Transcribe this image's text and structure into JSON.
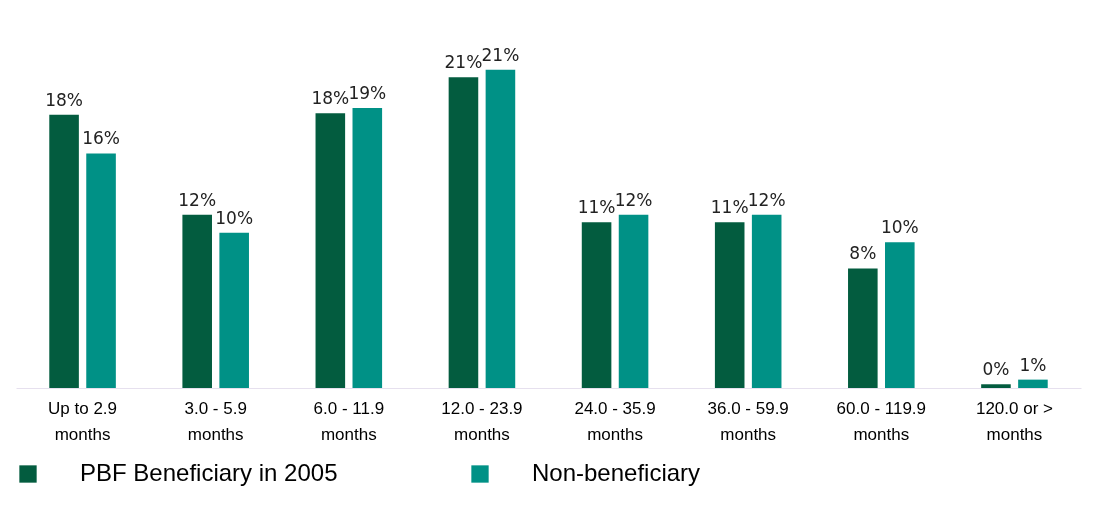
{
  "chart_data": {
    "type": "bar",
    "categories": [
      "Up to 2.9\nmonths",
      "3.0 - 5.9\nmonths",
      "6.0 - 11.9\nmonths",
      "12.0 - 23.9\nmonths",
      "24.0 - 35.9\nmonths",
      "36.0 - 59.9\nmonths",
      "60.0 - 119.9\nmonths",
      "120.0 or >\nmonths"
    ],
    "series": [
      {
        "name": "PBF Beneficiary in 2005",
        "color": "#035c3f",
        "values": [
          18.3,
          11.6,
          18.4,
          20.8,
          11.1,
          11.1,
          8.0,
          0.25
        ],
        "value_labels": [
          "18%",
          "12%",
          "18%",
          "21%",
          "11%",
          "11%",
          "8%",
          "0%"
        ]
      },
      {
        "name": "Non-beneficiary",
        "color": "#009186",
        "values": [
          15.7,
          10.4,
          18.75,
          21.3,
          11.6,
          11.6,
          9.75,
          0.56
        ],
        "value_labels": [
          "16%",
          "10%",
          "19%",
          "21%",
          "12%",
          "12%",
          "10%",
          "1%"
        ]
      }
    ],
    "legend": "bottom",
    "grid": false
  }
}
